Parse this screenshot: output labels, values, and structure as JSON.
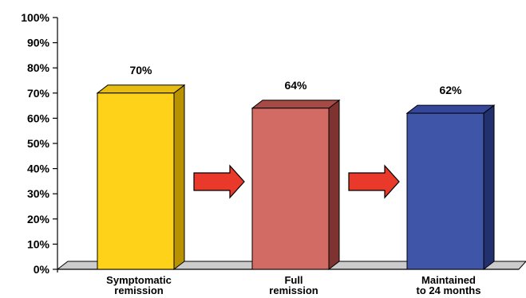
{
  "chart_data": {
    "type": "bar",
    "categories": [
      [
        "Symptomatic",
        "remission"
      ],
      [
        "Full",
        "remission"
      ],
      [
        "Maintained",
        "to 24 months"
      ]
    ],
    "values": [
      70,
      64,
      62
    ],
    "data_labels": [
      "70%",
      "64%",
      "62%"
    ],
    "y_ticks": [
      "0%",
      "10%",
      "20%",
      "30%",
      "40%",
      "50%",
      "60%",
      "70%",
      "80%",
      "90%",
      "100%"
    ],
    "ylim": [
      0,
      100
    ],
    "bar_style": "3d",
    "grid": false,
    "legend": "none",
    "colors": {
      "bars": [
        {
          "front": "#ffd21a",
          "side": "#b89200",
          "top": "#e6bb12"
        },
        {
          "front": "#d26b64",
          "side": "#7e3330",
          "top": "#a54a44"
        },
        {
          "front": "#3f55a8",
          "side": "#22306e",
          "top": "#34479a"
        }
      ],
      "arrow": "#e8392a",
      "floor": "#cccccc"
    },
    "flow_arrows": 2
  }
}
